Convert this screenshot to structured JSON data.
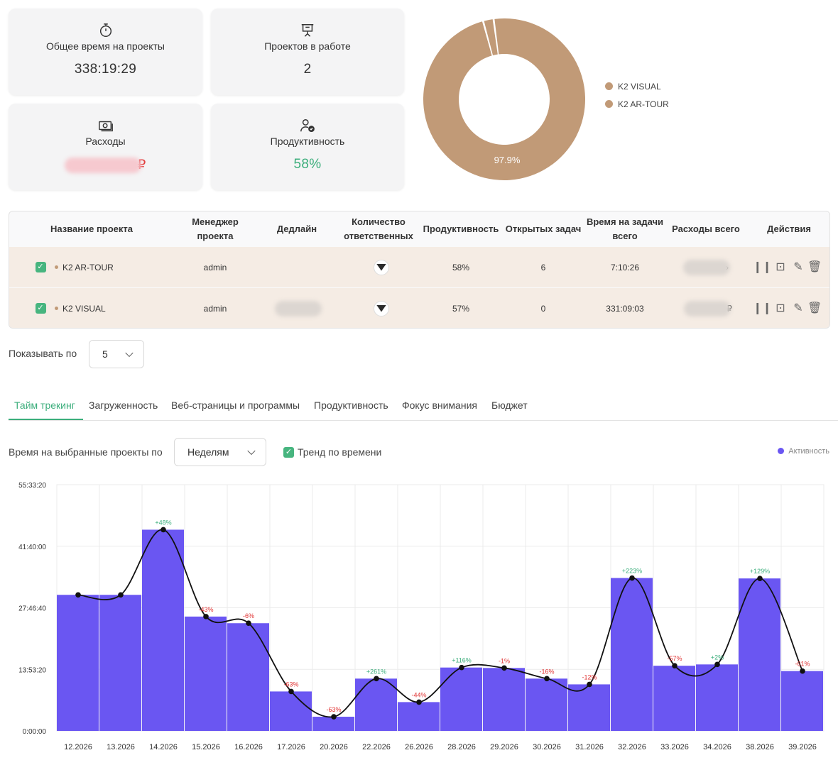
{
  "stats": {
    "total_time": {
      "label": "Общее время на проекты",
      "value": "338:19:29",
      "icon": "stopwatch-icon"
    },
    "projects_active": {
      "label": "Проектов в работе",
      "value": "2",
      "icon": "presentation-icon"
    },
    "expenses": {
      "label": "Расходы",
      "currency": "₽",
      "icon": "money-icon"
    },
    "productivity": {
      "label": "Продуктивность",
      "value": "58%",
      "icon": "user-check-icon"
    }
  },
  "donut": {
    "slices": [
      {
        "name": "K2 VISUAL",
        "value": 97.9,
        "color": "#c19a77"
      },
      {
        "name": "K2 AR-TOUR",
        "value": 2.1,
        "color": "#c19a77"
      }
    ],
    "center_label": "97.9%",
    "legend": [
      "K2 VISUAL",
      "K2 AR-TOUR"
    ]
  },
  "table": {
    "headers": [
      "Название проекта",
      "Менеджер\nпроекта",
      "Дедлайн",
      "Количество\nответственных",
      "Продуктивность",
      "Открытых задач",
      "Время на задачи\nвсего",
      "Расходы всего",
      "Действия"
    ],
    "rows": [
      {
        "name": "K2 AR-TOUR",
        "manager": "admin",
        "productivity": "58%",
        "open_tasks": "6",
        "time": "7:10:26",
        "expense_tail": "›"
      },
      {
        "name": "K2 VISUAL",
        "manager": "admin",
        "productivity": "57%",
        "open_tasks": "0",
        "time": "331:09:03",
        "expense_tail": "₽"
      }
    ]
  },
  "pagination": {
    "label": "Показывать по",
    "value": "5"
  },
  "tabs": [
    "Тайм трекинг",
    "Загруженность",
    "Веб-страницы и программы",
    "Продуктивность",
    "Фокус внимания",
    "Бюджет"
  ],
  "controls": {
    "caption": "Время на выбранные проекты по",
    "period": "Неделям",
    "trend_label": "Тренд по времени",
    "legend_activity": "Активность"
  },
  "chart_data": {
    "type": "bar",
    "categories": [
      "12.2026",
      "13.2026",
      "14.2026",
      "15.2026",
      "16.2026",
      "17.2026",
      "20.2026",
      "22.2026",
      "26.2026",
      "28.2026",
      "29.2026",
      "30.2026",
      "31.2026",
      "32.2026",
      "33.2026",
      "34.2026",
      "38.2026",
      "39.2026"
    ],
    "series": [
      {
        "values": [
          30.7,
          30.7,
          45.4,
          25.8,
          24.3,
          8.9,
          3.2,
          11.8,
          6.5,
          14.3,
          14.2,
          11.8,
          10.5,
          34.5,
          14.7,
          15.0,
          34.4,
          13.5
        ],
        "color": "#6a56f2"
      }
    ],
    "changes": [
      "",
      "",
      "+48%",
      "-43%",
      "-6%",
      "-63%",
      "-63%",
      "+261%",
      "-44%",
      "+116%",
      "-1%",
      "-16%",
      "-12%",
      "+223%",
      "-57%",
      "+2%",
      "+129%",
      "-61%"
    ],
    "yticks": [
      "0:00:00",
      "13:53:20",
      "27:46:40",
      "41:40:00",
      "55:33:20"
    ],
    "ylim_hours": [
      0,
      55.56
    ],
    "trend_line": true,
    "grid": true
  }
}
